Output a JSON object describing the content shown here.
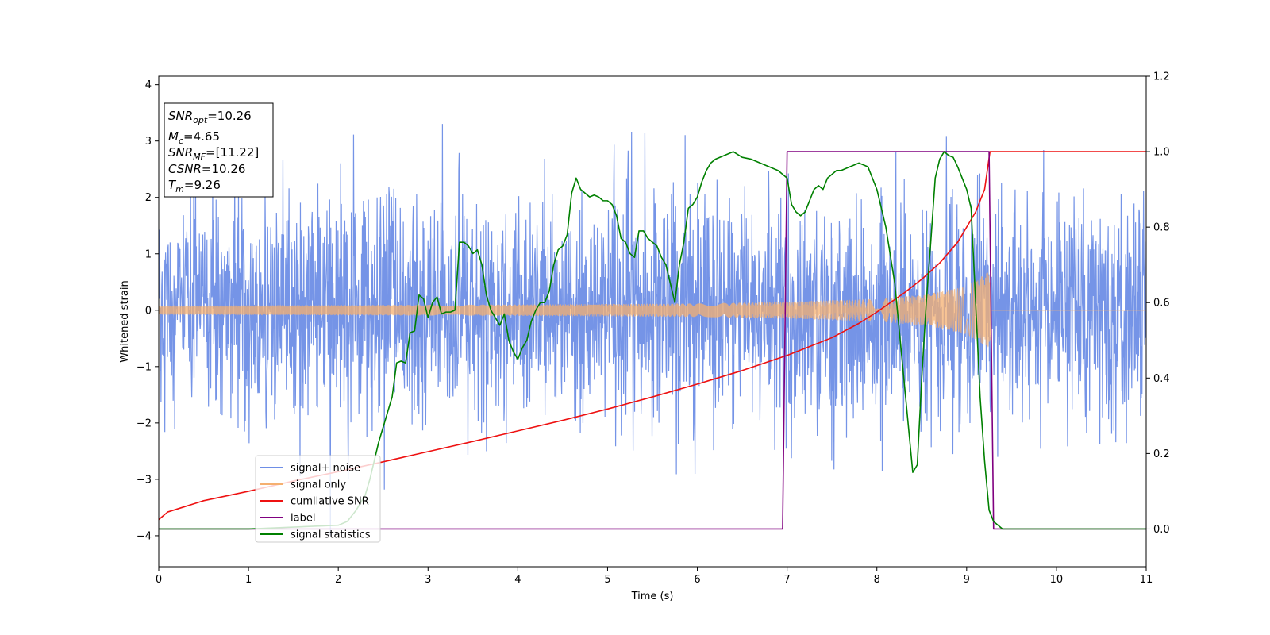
{
  "chart_data": {
    "type": "line",
    "xlabel": "Time (s)",
    "ylabel": "Whitened strain",
    "xlim": [
      0,
      11
    ],
    "ylim_left": [
      -4.55,
      4.15
    ],
    "ylim_right": [
      -0.1,
      1.2
    ],
    "x_ticks": [
      "0",
      "1",
      "2",
      "3",
      "4",
      "5",
      "6",
      "7",
      "8",
      "9",
      "10",
      "11"
    ],
    "y_ticks_left": [
      "4",
      "3",
      "2",
      "1",
      "0",
      "−1",
      "−2",
      "−3",
      "−4"
    ],
    "y_ticks_right": [
      "1.2",
      "1.0",
      "0.8",
      "0.6",
      "0.4",
      "0.2",
      "0.0"
    ],
    "info_box": {
      "snr_opt": {
        "sym": "SNR",
        "sub": "opt",
        "value": "=10.26"
      },
      "mc": {
        "sym": "M",
        "sub": "c",
        "value": "=4.65"
      },
      "snr_mf": {
        "sym": "SNR",
        "sub": "MF",
        "value": "=[11.22]"
      },
      "csnr": {
        "sym": "CSNR",
        "value": "=10.26"
      },
      "tm": {
        "sym": "T",
        "sub": "m",
        "value": "=9.26"
      }
    },
    "legend": {
      "placement": "lower-left",
      "entries": [
        {
          "label": "signal+ noise",
          "color": "#6e8ee6"
        },
        {
          "label": "signal only",
          "color": "#f5b070"
        },
        {
          "label": "cumilative SNR",
          "color": "#ee1111"
        },
        {
          "label": "label",
          "color": "#800080"
        },
        {
          "label": "signal statistics",
          "color": "#008000"
        }
      ]
    },
    "series": [
      {
        "name": "signal+ noise",
        "axis": "left",
        "kind": "gaussian noise band",
        "mean": 0,
        "std": 1.0,
        "x_range": [
          0,
          11
        ],
        "color": "#6e8ee6"
      },
      {
        "name": "signal only",
        "axis": "left",
        "kind": "chirp envelope",
        "envelope": {
          "x": [
            0,
            2,
            4,
            6,
            7,
            8,
            8.5,
            9,
            9.26
          ],
          "y": [
            0.08,
            0.09,
            0.1,
            0.12,
            0.15,
            0.2,
            0.27,
            0.42,
            0.7
          ]
        },
        "ends_at": 9.26,
        "color": "#f5b070"
      },
      {
        "name": "cumilative SNR",
        "axis": "right",
        "x": [
          0,
          0.1,
          0.3,
          0.5,
          1,
          1.5,
          2,
          2.5,
          3,
          3.5,
          4,
          4.5,
          5,
          5.5,
          6,
          6.5,
          7,
          7.5,
          7.8,
          8,
          8.3,
          8.5,
          8.7,
          8.9,
          9.0,
          9.1,
          9.2,
          9.26,
          11
        ],
        "y": [
          0.025,
          0.045,
          0.06,
          0.075,
          0.1,
          0.127,
          0.152,
          0.178,
          0.205,
          0.232,
          0.26,
          0.288,
          0.318,
          0.35,
          0.384,
          0.42,
          0.46,
          0.507,
          0.545,
          0.575,
          0.625,
          0.662,
          0.705,
          0.76,
          0.8,
          0.84,
          0.9,
          1.0,
          1.0
        ],
        "color": "#ee1111"
      },
      {
        "name": "label",
        "axis": "right",
        "x": [
          0,
          6.95,
          7.0,
          9.25,
          9.3,
          11
        ],
        "y": [
          0,
          0,
          1,
          1,
          0,
          0
        ],
        "color": "#800080"
      },
      {
        "name": "signal statistics",
        "axis": "right",
        "x": [
          0,
          1,
          2,
          2.1,
          2.2,
          2.3,
          2.35,
          2.4,
          2.45,
          2.5,
          2.55,
          2.6,
          2.65,
          2.7,
          2.75,
          2.8,
          2.85,
          2.9,
          2.95,
          3.0,
          3.05,
          3.1,
          3.15,
          3.2,
          3.25,
          3.3,
          3.35,
          3.4,
          3.45,
          3.5,
          3.55,
          3.6,
          3.65,
          3.7,
          3.75,
          3.8,
          3.85,
          3.9,
          3.95,
          4.0,
          4.05,
          4.1,
          4.15,
          4.2,
          4.25,
          4.3,
          4.35,
          4.4,
          4.45,
          4.5,
          4.55,
          4.6,
          4.65,
          4.7,
          4.75,
          4.8,
          4.85,
          4.9,
          4.95,
          5.0,
          5.05,
          5.1,
          5.15,
          5.2,
          5.25,
          5.3,
          5.35,
          5.4,
          5.45,
          5.5,
          5.55,
          5.6,
          5.65,
          5.7,
          5.75,
          5.8,
          5.85,
          5.9,
          5.95,
          6.0,
          6.05,
          6.1,
          6.15,
          6.2,
          6.3,
          6.4,
          6.5,
          6.6,
          6.7,
          6.8,
          6.9,
          7.0,
          7.05,
          7.1,
          7.15,
          7.2,
          7.25,
          7.3,
          7.35,
          7.4,
          7.45,
          7.5,
          7.55,
          7.6,
          7.7,
          7.8,
          7.9,
          8.0,
          8.1,
          8.2,
          8.3,
          8.4,
          8.45,
          8.5,
          8.55,
          8.6,
          8.65,
          8.7,
          8.75,
          8.8,
          8.85,
          8.9,
          8.95,
          9.0,
          9.05,
          9.1,
          9.15,
          9.2,
          9.25,
          9.3,
          9.35,
          9.4,
          9.5,
          9.7,
          10,
          11
        ],
        "y": [
          0,
          0,
          0.01,
          0.02,
          0.05,
          0.09,
          0.13,
          0.18,
          0.23,
          0.27,
          0.31,
          0.35,
          0.44,
          0.445,
          0.44,
          0.52,
          0.525,
          0.62,
          0.61,
          0.56,
          0.6,
          0.615,
          0.57,
          0.575,
          0.575,
          0.58,
          0.76,
          0.76,
          0.75,
          0.73,
          0.74,
          0.7,
          0.62,
          0.58,
          0.56,
          0.54,
          0.57,
          0.5,
          0.47,
          0.45,
          0.48,
          0.5,
          0.55,
          0.58,
          0.6,
          0.6,
          0.63,
          0.7,
          0.74,
          0.75,
          0.78,
          0.89,
          0.93,
          0.9,
          0.89,
          0.88,
          0.885,
          0.88,
          0.87,
          0.87,
          0.86,
          0.83,
          0.77,
          0.76,
          0.73,
          0.72,
          0.79,
          0.79,
          0.77,
          0.76,
          0.75,
          0.72,
          0.7,
          0.65,
          0.6,
          0.7,
          0.76,
          0.85,
          0.86,
          0.88,
          0.92,
          0.95,
          0.97,
          0.98,
          0.99,
          1.0,
          0.985,
          0.98,
          0.97,
          0.96,
          0.95,
          0.93,
          0.86,
          0.84,
          0.83,
          0.84,
          0.87,
          0.9,
          0.91,
          0.9,
          0.93,
          0.94,
          0.95,
          0.95,
          0.96,
          0.97,
          0.96,
          0.9,
          0.8,
          0.65,
          0.4,
          0.15,
          0.17,
          0.4,
          0.6,
          0.76,
          0.93,
          0.98,
          1.0,
          0.99,
          0.985,
          0.96,
          0.93,
          0.9,
          0.85,
          0.6,
          0.35,
          0.18,
          0.05,
          0.02,
          0.01,
          0.0,
          0.0,
          0.0,
          0.0,
          0.0
        ],
        "color": "#008000"
      }
    ]
  }
}
